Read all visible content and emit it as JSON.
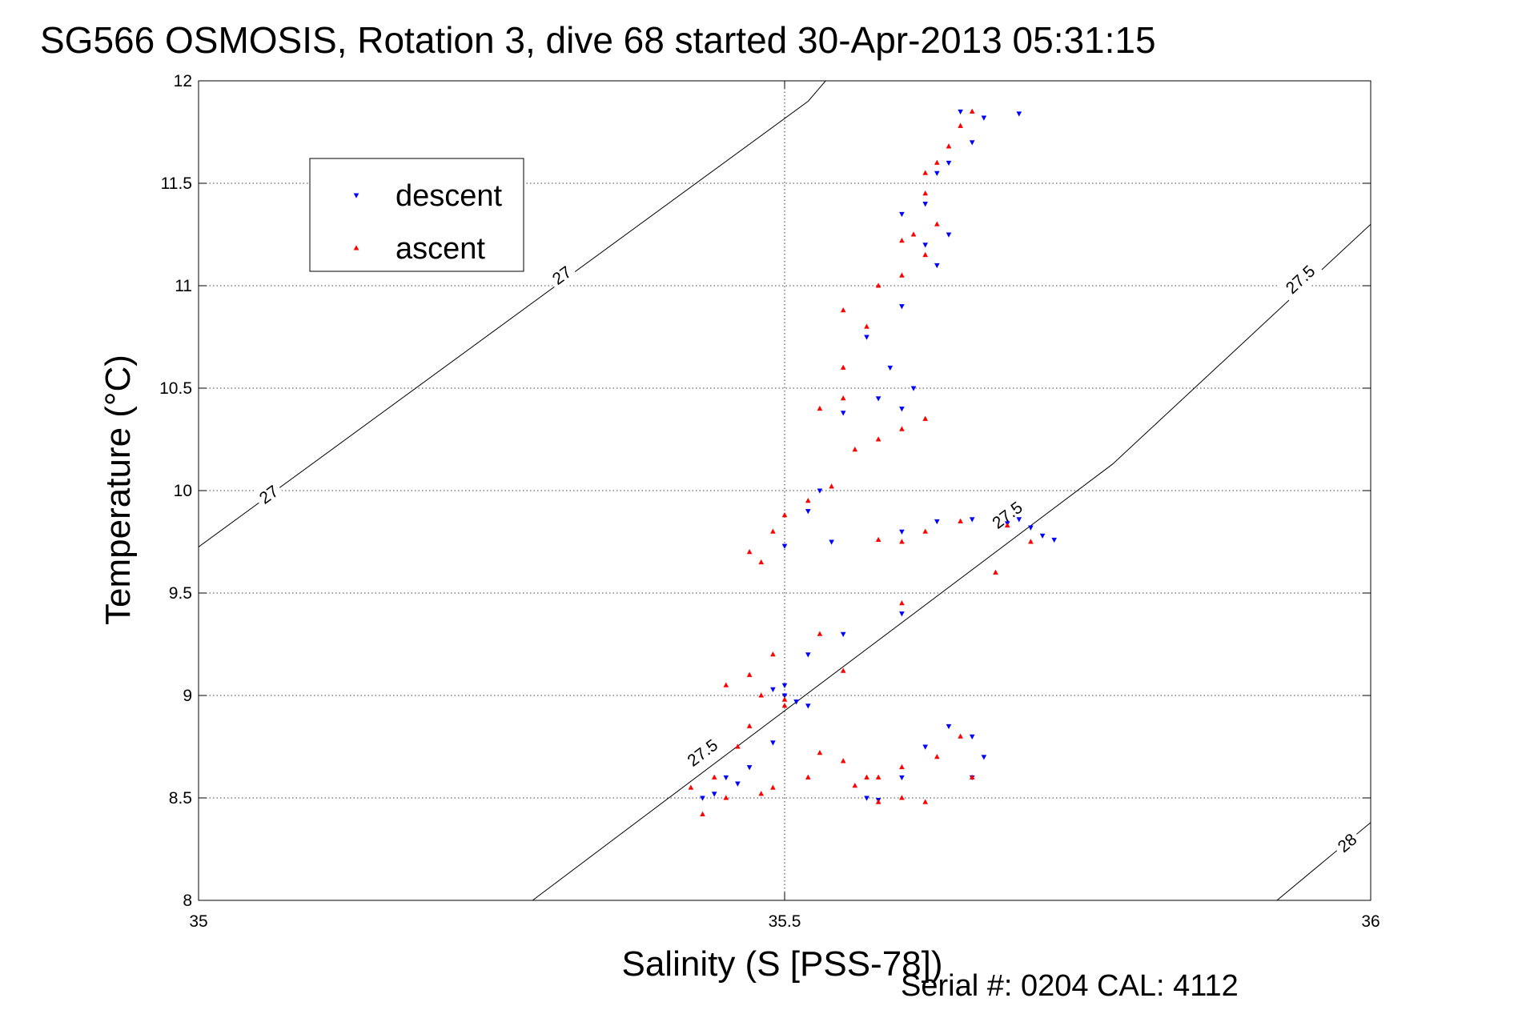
{
  "chart_data": {
    "type": "scatter",
    "title": "SG566 OSMOSIS, Rotation 3, dive 68 started 30-Apr-2013 05:31:15",
    "xlabel": "Salinity (S [PSS-78])",
    "ylabel": "Temperature (°C)",
    "xlim": [
      35,
      36
    ],
    "ylim": [
      8,
      12
    ],
    "xticks": [
      "35",
      "35.5",
      "36"
    ],
    "yticks": [
      "8",
      "8.5",
      "9",
      "9.5",
      "10",
      "10.5",
      "11",
      "11.5",
      "12"
    ],
    "grid": true,
    "legend": {
      "placement": "top-left",
      "entries": [
        "descent",
        "ascent"
      ]
    },
    "footer": "Serial #: 0204  CAL: 4112",
    "colors": {
      "descent": "#0000ff",
      "ascent": "#ff0000",
      "contour": "#000000"
    },
    "density_contours": [
      {
        "label": "27",
        "points": [
          [
            35,
            9.725
          ],
          [
            35.52,
            11.9
          ],
          [
            35.535,
            12
          ]
        ],
        "labels_at": [
          [
            35.06,
            9.98
          ],
          [
            35.31,
            11.05
          ]
        ]
      },
      {
        "label": "27.5",
        "points": [
          [
            35.285,
            8
          ],
          [
            35.78,
            10.13
          ],
          [
            36,
            11.3
          ]
        ],
        "labels_at": [
          [
            35.43,
            8.72
          ],
          [
            35.69,
            9.88
          ],
          [
            35.94,
            11.03
          ]
        ]
      },
      {
        "label": "28",
        "points": [
          [
            35.92,
            8
          ],
          [
            36,
            8.38
          ]
        ],
        "labels_at": [
          [
            35.98,
            8.28
          ]
        ]
      }
    ],
    "series": [
      {
        "name": "descent",
        "marker": "triangle-down",
        "points": [
          [
            35.5,
            9.73
          ],
          [
            35.54,
            9.75
          ],
          [
            35.6,
            9.8
          ],
          [
            35.63,
            9.85
          ],
          [
            35.66,
            9.86
          ],
          [
            35.69,
            9.84
          ],
          [
            35.71,
            9.82
          ],
          [
            35.72,
            9.78
          ],
          [
            35.73,
            9.76
          ],
          [
            35.7,
            9.86
          ],
          [
            35.6,
            9.4
          ],
          [
            35.55,
            9.3
          ],
          [
            35.52,
            9.2
          ],
          [
            35.5,
            9.05
          ],
          [
            35.49,
            9.03
          ],
          [
            35.5,
            9.0
          ],
          [
            35.51,
            8.97
          ],
          [
            35.52,
            8.95
          ],
          [
            35.49,
            8.77
          ],
          [
            35.45,
            8.6
          ],
          [
            35.47,
            8.65
          ],
          [
            35.44,
            8.52
          ],
          [
            35.46,
            8.57
          ],
          [
            35.43,
            8.5
          ],
          [
            35.57,
            8.5
          ],
          [
            35.58,
            8.49
          ],
          [
            35.6,
            8.6
          ],
          [
            35.62,
            8.75
          ],
          [
            35.64,
            8.85
          ],
          [
            35.66,
            8.8
          ],
          [
            35.67,
            8.7
          ],
          [
            35.66,
            8.6
          ],
          [
            35.52,
            9.9
          ],
          [
            35.53,
            10.0
          ],
          [
            35.55,
            10.38
          ],
          [
            35.58,
            10.45
          ],
          [
            35.6,
            10.4
          ],
          [
            35.61,
            10.5
          ],
          [
            35.59,
            10.6
          ],
          [
            35.57,
            10.75
          ],
          [
            35.6,
            10.9
          ],
          [
            35.63,
            11.1
          ],
          [
            35.62,
            11.2
          ],
          [
            35.64,
            11.25
          ],
          [
            35.6,
            11.35
          ],
          [
            35.62,
            11.4
          ],
          [
            35.63,
            11.55
          ],
          [
            35.64,
            11.6
          ],
          [
            35.66,
            11.7
          ],
          [
            35.67,
            11.82
          ],
          [
            35.65,
            11.85
          ],
          [
            35.7,
            11.84
          ]
        ]
      },
      {
        "name": "ascent",
        "marker": "triangle-up",
        "points": [
          [
            35.48,
            9.65
          ],
          [
            35.47,
            9.7
          ],
          [
            35.49,
            9.8
          ],
          [
            35.5,
            9.88
          ],
          [
            35.52,
            9.95
          ],
          [
            35.58,
            9.76
          ],
          [
            35.6,
            9.75
          ],
          [
            35.62,
            9.8
          ],
          [
            35.65,
            9.85
          ],
          [
            35.69,
            9.83
          ],
          [
            35.71,
            9.75
          ],
          [
            35.68,
            9.6
          ],
          [
            35.54,
            10.02
          ],
          [
            35.56,
            10.2
          ],
          [
            35.58,
            10.25
          ],
          [
            35.6,
            10.3
          ],
          [
            35.62,
            10.35
          ],
          [
            35.55,
            10.45
          ],
          [
            35.53,
            9.3
          ],
          [
            35.6,
            9.45
          ],
          [
            35.55,
            9.12
          ],
          [
            35.49,
            9.2
          ],
          [
            35.47,
            9.1
          ],
          [
            35.45,
            9.05
          ],
          [
            35.48,
            9.0
          ],
          [
            35.5,
            8.98
          ],
          [
            35.5,
            8.95
          ],
          [
            35.47,
            8.85
          ],
          [
            35.46,
            8.75
          ],
          [
            35.44,
            8.6
          ],
          [
            35.42,
            8.55
          ],
          [
            35.45,
            8.5
          ],
          [
            35.48,
            8.52
          ],
          [
            35.52,
            8.6
          ],
          [
            35.56,
            8.56
          ],
          [
            35.58,
            8.6
          ],
          [
            35.6,
            8.65
          ],
          [
            35.63,
            8.7
          ],
          [
            35.65,
            8.8
          ],
          [
            35.66,
            8.6
          ],
          [
            35.6,
            8.5
          ],
          [
            35.62,
            8.48
          ],
          [
            35.58,
            8.48
          ],
          [
            35.57,
            8.6
          ],
          [
            35.53,
            8.72
          ],
          [
            35.55,
            8.68
          ],
          [
            35.43,
            8.42
          ],
          [
            35.49,
            8.55
          ],
          [
            35.53,
            10.4
          ],
          [
            35.55,
            10.6
          ],
          [
            35.57,
            10.8
          ],
          [
            35.55,
            10.88
          ],
          [
            35.58,
            11.0
          ],
          [
            35.6,
            11.05
          ],
          [
            35.62,
            11.15
          ],
          [
            35.6,
            11.22
          ],
          [
            35.63,
            11.3
          ],
          [
            35.62,
            11.45
          ],
          [
            35.63,
            11.6
          ],
          [
            35.64,
            11.68
          ],
          [
            35.65,
            11.78
          ],
          [
            35.66,
            11.85
          ],
          [
            35.62,
            11.55
          ],
          [
            35.61,
            11.25
          ]
        ]
      }
    ]
  }
}
